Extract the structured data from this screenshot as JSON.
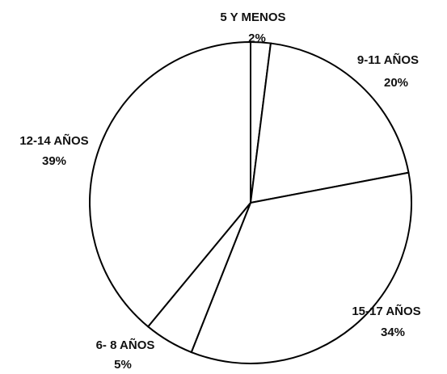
{
  "chart_data": {
    "type": "pie",
    "categories": [
      "5 Y MENOS",
      "9-11 AÑOS",
      "15-17 AÑOS",
      "6- 8 AÑOS",
      "12-14 AÑOS"
    ],
    "values": [
      2,
      20,
      34,
      5,
      39
    ],
    "value_labels": [
      "2%",
      "20%",
      "34%",
      "5%",
      "39%"
    ],
    "color": "#ffffff"
  }
}
